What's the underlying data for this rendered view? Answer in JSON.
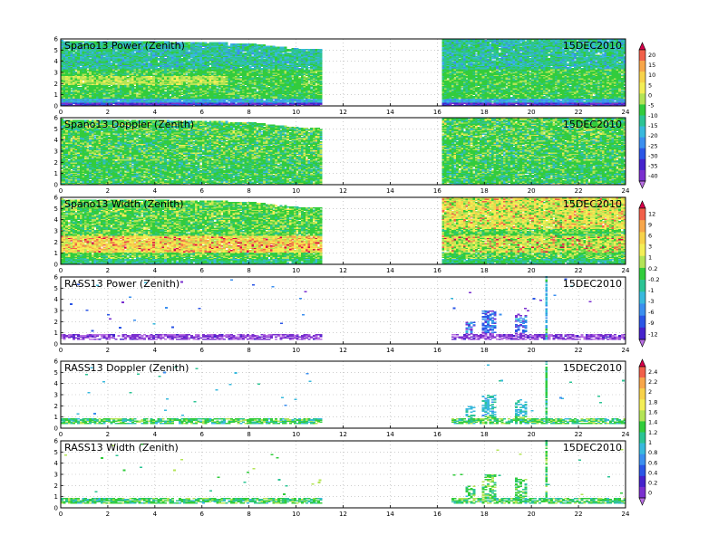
{
  "chart_data": {
    "type": "heatmap",
    "xlim": [
      0,
      24
    ],
    "ylim": [
      0,
      6
    ],
    "xticks": [
      "0",
      "2",
      "4",
      "6",
      "8",
      "10",
      "12",
      "14",
      "16",
      "18",
      "20",
      "22",
      "24"
    ],
    "yticks": [
      "0",
      "1",
      "2",
      "3",
      "4",
      "5",
      "6"
    ],
    "date_label": "15DEC2010",
    "data_gap_hours": [
      11,
      16.1
    ],
    "grid": true,
    "panels": [
      {
        "title": "Spano13 Power (Zenith)",
        "kind": "wind_power"
      },
      {
        "title": "Spano13 Doppler (Zenith)",
        "kind": "wind_doppler"
      },
      {
        "title": "Spano13 Width (Zenith)",
        "kind": "wind_width"
      },
      {
        "title": "RASS13 Power (Zenith)",
        "kind": "rass_power"
      },
      {
        "title": "RASS13 Doppler (Zenith)",
        "kind": "rass_doppler"
      },
      {
        "title": "RASS13 Width (Zenith)",
        "kind": "rass_width"
      }
    ],
    "colorbars": [
      {
        "ticks": [
          "20",
          "15",
          "10",
          "5",
          "0",
          "-5",
          "-10",
          "-15",
          "-20",
          "-25",
          "-30",
          "-35",
          "-40"
        ],
        "colors": [
          "#d8004a",
          "#f1604a",
          "#f7a64a",
          "#f7d24a",
          "#f3ee56",
          "#b3e456",
          "#32cc3c",
          "#2cc494",
          "#38b9dd",
          "#3b8fef",
          "#2b56e6",
          "#4523cc",
          "#7a2fcf",
          "#b86ee3"
        ]
      },
      {
        "ticks": [
          "12",
          "9",
          "6",
          "3",
          "1",
          "0.2",
          "-0.2",
          "-1",
          "-3",
          "-6",
          "-9",
          "-12"
        ],
        "colors": [
          "#d8004a",
          "#f1604a",
          "#f7a64a",
          "#f7d24a",
          "#f3ee56",
          "#b3e456",
          "#32cc3c",
          "#2cc494",
          "#38b9dd",
          "#3b8fef",
          "#2b56e6",
          "#4523cc",
          "#b86ee3"
        ]
      },
      {
        "ticks": [
          "2.4",
          "2.2",
          "2",
          "1.8",
          "1.6",
          "1.4",
          "1.2",
          "1",
          "0.8",
          "0.6",
          "0.4",
          "0.2",
          "0"
        ],
        "colors": [
          "#d8004a",
          "#f1604a",
          "#f7a64a",
          "#f7d24a",
          "#f3ee56",
          "#b3e456",
          "#32cc3c",
          "#2cc494",
          "#38b9dd",
          "#3b8fef",
          "#2b56e6",
          "#4523cc",
          "#7a2fcf",
          "#b86ee3"
        ]
      }
    ]
  }
}
